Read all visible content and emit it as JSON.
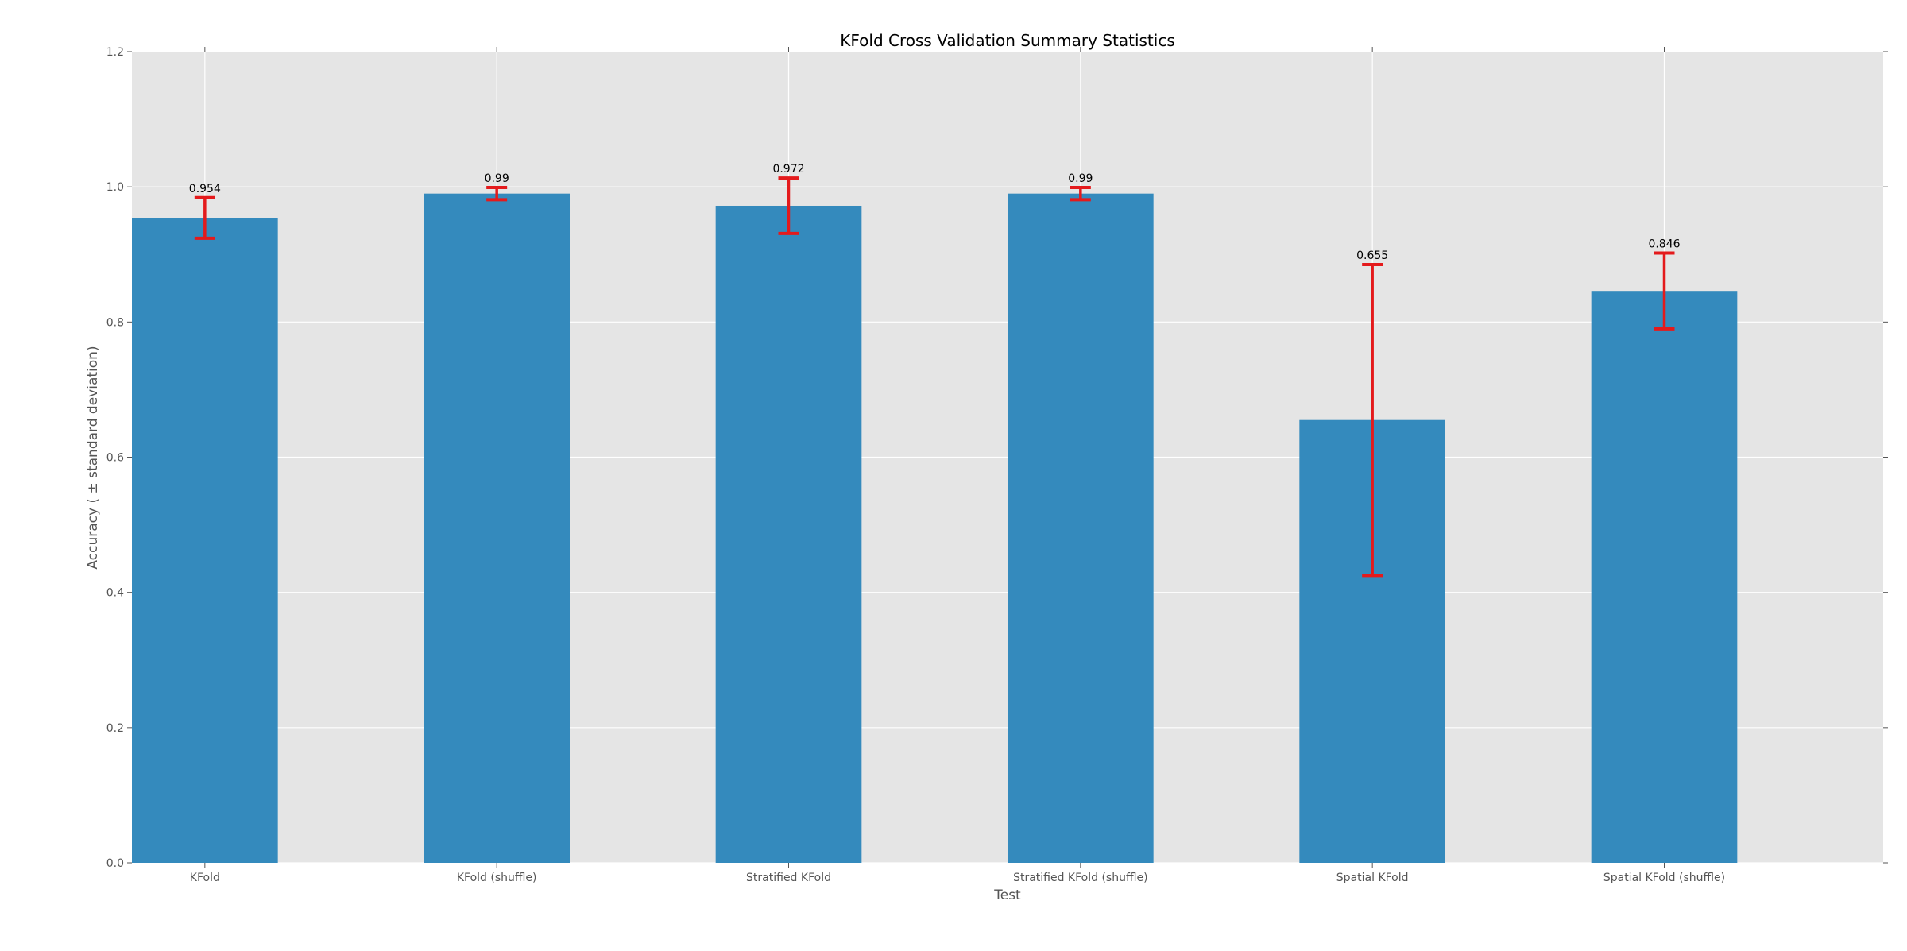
{
  "chart_data": {
    "type": "bar",
    "title": "KFold Cross Validation Summary Statistics",
    "xlabel": "Test",
    "ylabel": "Accuracy ( ± standard deviation)",
    "categories": [
      "KFold",
      "KFold (shuffle)",
      "Stratified KFold",
      "Stratified KFold (shuffle)",
      "Spatial KFold",
      "Spatial KFold (shuffle)"
    ],
    "values": [
      0.954,
      0.99,
      0.972,
      0.99,
      0.655,
      0.846
    ],
    "value_labels": [
      "0.954",
      "0.99",
      "0.972",
      "0.99",
      "0.655",
      "0.846"
    ],
    "error": [
      0.03,
      0.009,
      0.041,
      0.009,
      0.23,
      0.056
    ],
    "ylim": [
      0.0,
      1.2
    ],
    "yticks": [
      0.0,
      0.2,
      0.4,
      0.6,
      0.8,
      1.0,
      1.2
    ],
    "ytick_labels": [
      "0.0",
      "0.2",
      "0.4",
      "0.6",
      "0.8",
      "1.0",
      "1.2"
    ],
    "grid": true,
    "colors": {
      "bar": "#348abd",
      "error_bar": "#e41a1c",
      "plot_background": "#e5e5e5",
      "grid": "#ffffff",
      "tick_label": "#555555",
      "text": "#000000"
    }
  }
}
